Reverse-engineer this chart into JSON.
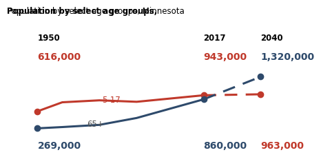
{
  "title_bold": "Population by select age groups,",
  "title_light": " Minnesota",
  "years_solid": [
    1950,
    1960,
    1975,
    1990,
    2017
  ],
  "years_dashed": [
    2017,
    2040
  ],
  "red_solid": [
    616000,
    800000,
    840000,
    810000,
    943000
  ],
  "red_dashed": [
    943000,
    963000
  ],
  "blue_solid": [
    269000,
    295000,
    340000,
    480000,
    860000
  ],
  "blue_dashed": [
    860000,
    1320000
  ],
  "red_color": "#C0392B",
  "blue_color": "#2E4A6B",
  "label_1950": "1950",
  "label_2017": "2017",
  "label_2040": "2040",
  "red_val_1950": "616,000",
  "red_val_2017": "943,000",
  "blue_val_2040": "1,320,000",
  "blue_val_1950": "269,000",
  "blue_val_2017": "860,000",
  "red_val_2040": "963,000",
  "label_red": "5-17",
  "label_blue": "65+",
  "bg_color": "#FFFFFF",
  "xlim": [
    1940,
    2052
  ],
  "ylim": [
    150000,
    1500000
  ]
}
